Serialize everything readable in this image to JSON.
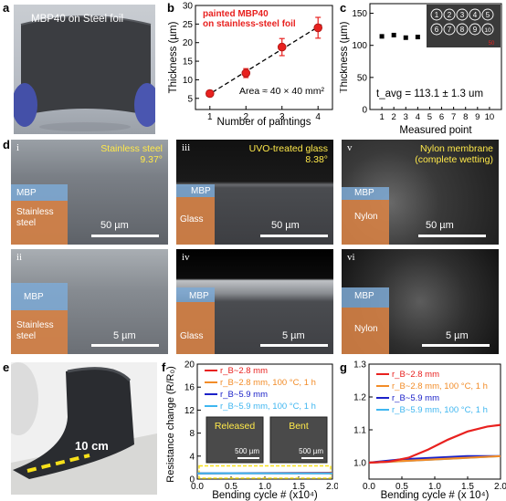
{
  "panel_labels": {
    "a": "a",
    "b": "b",
    "c": "c",
    "d": "d",
    "e": "e",
    "f": "f",
    "g": "g"
  },
  "panel_a": {
    "caption": "MBP40  on Steel foil"
  },
  "panel_e": {
    "length_label": "10 cm"
  },
  "panel_d": {
    "i": {
      "roman": "i",
      "title": "Stainless steel",
      "subtitle": "9.37°",
      "layer_top": "MBP",
      "layer_bottom": "Stainless steel",
      "scale": "50 µm"
    },
    "ii": {
      "roman": "ii",
      "layer_top": "MBP",
      "layer_bottom": "Stainless steel",
      "scale": "5 µm"
    },
    "iii": {
      "roman": "iii",
      "title": "UVO-treated glass",
      "subtitle": "8.38°",
      "layer_top": "MBP",
      "layer_bottom": "Glass",
      "scale": "50 µm"
    },
    "iv": {
      "roman": "iv",
      "layer_top": "MBP",
      "layer_bottom": "Glass",
      "scale": "5 µm"
    },
    "v": {
      "roman": "v",
      "title": "Nylon membrane",
      "subtitle": "(complete wetting)",
      "layer_top": "MBP",
      "layer_bottom": "Nylon",
      "scale": "50 µm"
    },
    "vi": {
      "roman": "vi",
      "layer_top": "MBP",
      "layer_bottom": "Nylon",
      "scale": "5 µm"
    }
  },
  "chart_data": [
    {
      "id": "b",
      "type": "scatter",
      "legend_title": "painted MBP40\non stainless-steel foil",
      "annotation": "Area ≈ 40 × 40 mm²",
      "xlabel": "Number of paintings",
      "ylabel": "Thickness (µm)",
      "xlim": [
        0.6,
        4.4
      ],
      "ylim": [
        2,
        30
      ],
      "xticks": [
        1,
        2,
        3,
        4
      ],
      "yticks": [
        5,
        10,
        15,
        20,
        25,
        30
      ],
      "x": [
        1,
        2,
        3,
        4
      ],
      "y": [
        6.3,
        11.8,
        18.8,
        24.0
      ],
      "yerr": [
        0.8,
        1.2,
        2.3,
        2.8
      ],
      "color": "#e8211f"
    },
    {
      "id": "c",
      "type": "scatter",
      "annotation": "t_avg = 113.1 ± 1.3 um",
      "xlabel": "Measured point",
      "ylabel": "Thickness (µm)",
      "xlim": [
        0,
        11
      ],
      "ylim": [
        0,
        165
      ],
      "xticks": [
        1,
        2,
        3,
        4,
        5,
        6,
        7,
        8,
        9,
        10
      ],
      "yticks": [
        0,
        50,
        100,
        150
      ],
      "x": [
        1,
        2,
        3,
        4,
        5,
        6,
        7,
        8,
        9,
        10
      ],
      "y": [
        114,
        116,
        112,
        113,
        113,
        114,
        112,
        111,
        114,
        113
      ],
      "inset_labels": [
        "1",
        "2",
        "3",
        "4",
        "5",
        "6",
        "7",
        "8",
        "9",
        "10"
      ],
      "inset_ruler": "50"
    },
    {
      "id": "f",
      "type": "line",
      "xlabel": "Bending cycle # (x10⁴)",
      "ylabel": "Resistance change (R/R₀)",
      "xlim": [
        0,
        2.0
      ],
      "ylim": [
        0,
        20
      ],
      "xticks": [
        0.0,
        0.5,
        1.0,
        1.5,
        2.0
      ],
      "yticks": [
        0,
        4,
        8,
        12,
        16,
        20
      ],
      "series": [
        {
          "name": "r_B~2.8 mm",
          "color": "#e8211f",
          "x": [
            0,
            2.0
          ],
          "y": [
            1.0,
            1.12
          ]
        },
        {
          "name": "r_B~2.8 mm, 100 °C, 1 h",
          "color": "#f28c28",
          "x": [
            0,
            2.0
          ],
          "y": [
            1.0,
            1.02
          ]
        },
        {
          "name": "r_B~5.9 mm",
          "color": "#1c22c8",
          "x": [
            0,
            2.0
          ],
          "y": [
            1.0,
            1.02
          ]
        },
        {
          "name": "r_B~5.9 mm, 100 °C, 1 h",
          "color": "#3fb6f0",
          "x": [
            0,
            2.0
          ],
          "y": [
            1.0,
            1.02
          ]
        }
      ],
      "insets": [
        {
          "label": "Released",
          "scale": "500 µm"
        },
        {
          "label": "Bent",
          "scale": "500 µm"
        }
      ]
    },
    {
      "id": "g",
      "type": "line",
      "xlabel": "Bending cycle # (x 10⁴)",
      "ylabel": "",
      "xlim": [
        0,
        2.0
      ],
      "ylim": [
        0.95,
        1.3
      ],
      "xticks": [
        0.0,
        0.5,
        1.0,
        1.5,
        2.0
      ],
      "yticks": [
        1.0,
        1.1,
        1.2,
        1.3
      ],
      "series": [
        {
          "name": "r_B~2.8 mm",
          "color": "#e8211f",
          "x": [
            0,
            0.3,
            0.6,
            0.9,
            1.2,
            1.5,
            1.8,
            2.0
          ],
          "y": [
            1.0,
            1.003,
            1.015,
            1.04,
            1.07,
            1.095,
            1.11,
            1.115
          ]
        },
        {
          "name": "r_B~2.8 mm, 100 °C, 1 h",
          "color": "#f28c28",
          "x": [
            0,
            2.0
          ],
          "y": [
            1.0,
            1.02
          ]
        },
        {
          "name": "r_B~5.9 mm",
          "color": "#1c22c8",
          "x": [
            0,
            0.5,
            1.0,
            1.5,
            2.0
          ],
          "y": [
            1.0,
            1.01,
            1.015,
            1.02,
            1.02
          ]
        },
        {
          "name": "r_B~5.9 mm, 100 °C, 1 h",
          "color": "#3fb6f0",
          "x": [
            0,
            2.0
          ],
          "y": [
            1.0,
            1.02
          ]
        }
      ]
    }
  ]
}
